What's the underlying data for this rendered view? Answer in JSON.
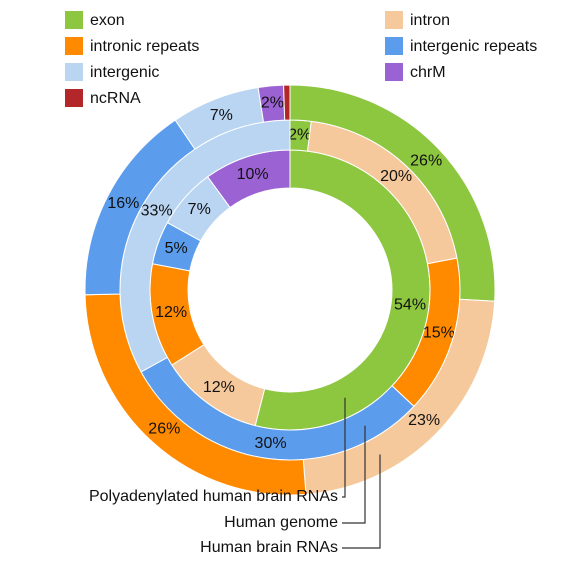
{
  "chart_data": {
    "type": "donut",
    "categories": [
      "exon",
      "intron",
      "intronic repeats",
      "intergenic repeats",
      "intergenic",
      "chrM",
      "ncRNA"
    ],
    "colors": [
      "#8dc63f",
      "#f6c99c",
      "#ff8a00",
      "#5b9cec",
      "#b9d5f2",
      "#9a62d3",
      "#b3262a"
    ],
    "rings": [
      {
        "name": "Polyadenylated human brain RNAs",
        "values": [
          54,
          12,
          12,
          5,
          7,
          10,
          null
        ],
        "value_labels": [
          "54%",
          "12%",
          "12%",
          "5%",
          "7%",
          "10%",
          null
        ]
      },
      {
        "name": "Human genome",
        "values": [
          2,
          20,
          15,
          30,
          33,
          null,
          null
        ],
        "value_labels": [
          "2%",
          "20%",
          "15%",
          "30%",
          "33%",
          null,
          null
        ]
      },
      {
        "name": "Human brain RNAs",
        "values": [
          26,
          23,
          26,
          16,
          7,
          2,
          0.5
        ],
        "value_labels": [
          "26%",
          "23%",
          "26%",
          "16%",
          "7%",
          "2%",
          null
        ]
      }
    ]
  }
}
